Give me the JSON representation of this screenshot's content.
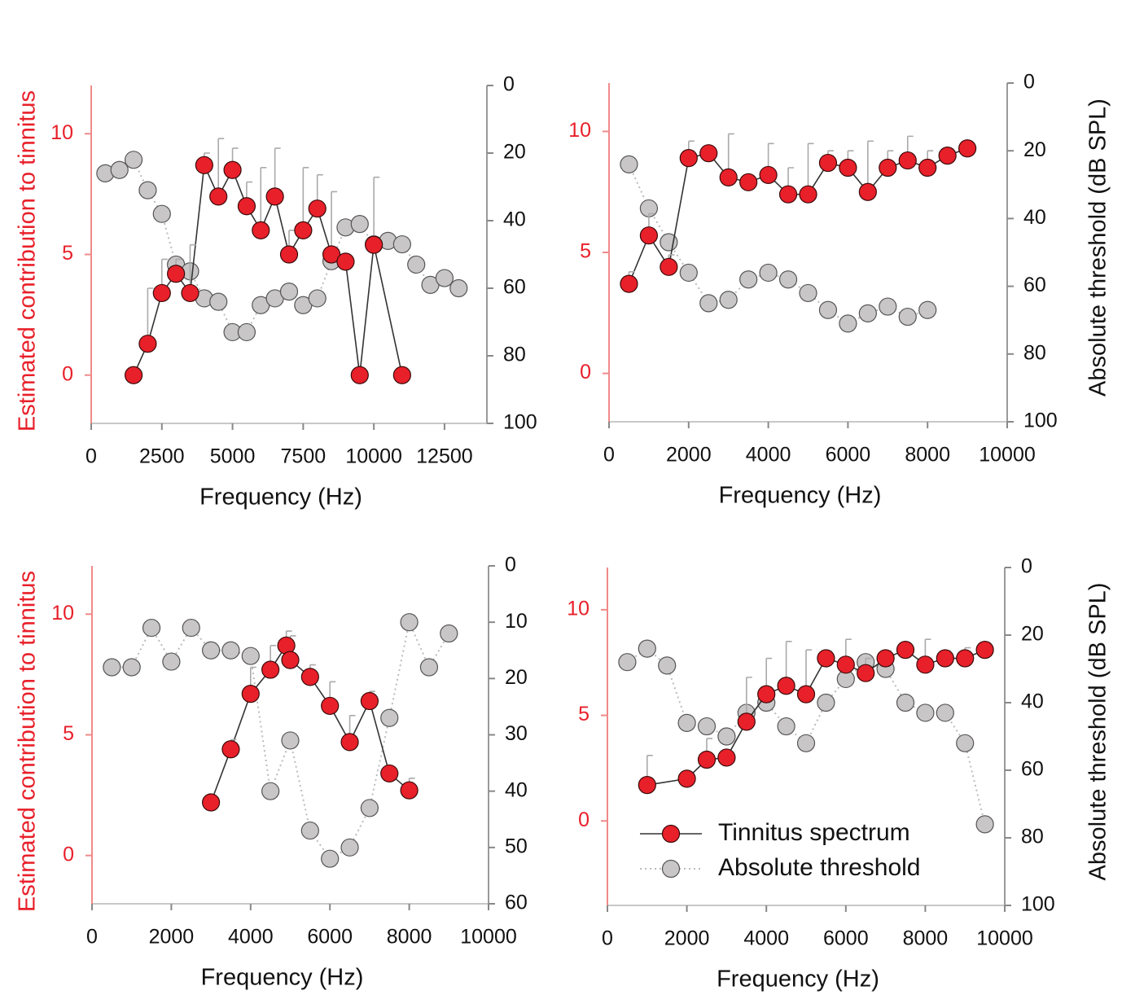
{
  "chart_data": [
    {
      "type": "line",
      "xlabel": "Frequency (Hz)",
      "ylabel": "Estimated contribution to tinnitus",
      "xlim": [
        0,
        14000
      ],
      "xticks": [
        0,
        2500,
        5000,
        7500,
        10000,
        12500
      ],
      "ylim": [
        -2,
        12
      ],
      "yticks": [
        0,
        5,
        10
      ],
      "y2lim": [
        100,
        0
      ],
      "y2ticks": [
        0,
        20,
        40,
        60,
        80,
        100
      ],
      "series": [
        {
          "color": "#e8202a",
          "style": "solid",
          "x": [
            1500,
            2000,
            2500,
            3000,
            3500,
            4000,
            4500,
            5000,
            5500,
            6000,
            6500,
            7000,
            7500,
            8000,
            8500,
            9000,
            9500,
            10000,
            11000
          ],
          "values": [
            0,
            1.3,
            3.4,
            4.2,
            3.4,
            8.7,
            7.4,
            8.5,
            7.0,
            6.0,
            7.4,
            5.0,
            6.0,
            6.9,
            5.0,
            4.7,
            0,
            5.4,
            0
          ],
          "errors": [
            null,
            2.3,
            1.4,
            0.6,
            2.0,
            0.5,
            2.4,
            0.9,
            1.0,
            2.6,
            2.0,
            1.0,
            2.6,
            1.4,
            2.6,
            null,
            null,
            2.8,
            null
          ]
        },
        {
          "color": "#c8c6c6",
          "style": "dotted",
          "axis": "y2",
          "x": [
            500,
            1000,
            1500,
            2000,
            2500,
            3000,
            3500,
            4000,
            4500,
            5000,
            5500,
            6000,
            6500,
            7000,
            7500,
            8000,
            8500,
            9000,
            9500,
            10000,
            10500,
            11000,
            11500,
            12000,
            12500,
            13000
          ],
          "values": [
            26,
            25,
            22,
            31,
            38,
            53,
            55,
            63,
            64,
            73,
            73,
            65,
            63,
            61,
            65,
            63,
            52,
            42,
            41,
            47,
            46,
            47,
            53,
            59,
            57,
            60
          ]
        }
      ]
    },
    {
      "type": "line",
      "xlabel": "Frequency (Hz)",
      "y2label": "Absolute threshold (dB SPL)",
      "xlim": [
        0,
        10000
      ],
      "xticks": [
        0,
        2000,
        4000,
        6000,
        8000,
        10000
      ],
      "ylim": [
        -2,
        12
      ],
      "yticks": [
        0,
        5,
        10
      ],
      "y2lim": [
        100,
        0
      ],
      "y2ticks": [
        0,
        20,
        40,
        60,
        80,
        100
      ],
      "series": [
        {
          "color": "#e8202a",
          "style": "solid",
          "x": [
            500,
            1000,
            1500,
            2000,
            2500,
            3000,
            3500,
            4000,
            4500,
            5000,
            5500,
            6000,
            6500,
            7000,
            7500,
            8000,
            8500,
            9000
          ],
          "values": [
            3.7,
            5.7,
            4.4,
            8.9,
            9.1,
            8.1,
            7.9,
            8.2,
            7.4,
            7.4,
            8.7,
            8.5,
            7.5,
            8.5,
            8.8,
            8.5,
            9.0,
            9.3
          ],
          "errors": [
            0.5,
            0.9,
            0.5,
            0.7,
            null,
            1.8,
            null,
            1.3,
            1.1,
            2.1,
            0.5,
            0.7,
            2.1,
            0.7,
            1.0,
            0.7,
            null,
            null
          ]
        },
        {
          "color": "#c8c6c6",
          "style": "dotted",
          "axis": "y2",
          "x": [
            500,
            1000,
            1500,
            2000,
            2500,
            3000,
            3500,
            4000,
            4500,
            5000,
            5500,
            6000,
            6500,
            7000,
            7500,
            8000
          ],
          "values": [
            24,
            37,
            47,
            56,
            65,
            64,
            58,
            56,
            58,
            62,
            67,
            71,
            68,
            66,
            69,
            67
          ]
        }
      ]
    },
    {
      "type": "line",
      "xlabel": "Frequency (Hz)",
      "ylabel": "Estimated contribution to tinnitus",
      "xlim": [
        0,
        10000
      ],
      "xticks": [
        0,
        2000,
        4000,
        6000,
        8000,
        10000
      ],
      "ylim": [
        -2,
        12
      ],
      "yticks": [
        0,
        5,
        10
      ],
      "y2lim": [
        60,
        0
      ],
      "y2ticks": [
        0,
        10,
        20,
        30,
        40,
        50,
        60
      ],
      "series": [
        {
          "color": "#e8202a",
          "style": "solid",
          "x": [
            3000,
            3500,
            4000,
            4500,
            4900,
            5000,
            5500,
            6000,
            6500,
            7000,
            7500,
            8000
          ],
          "values": [
            2.2,
            4.4,
            6.7,
            7.7,
            8.7,
            8.1,
            7.4,
            6.2,
            4.7,
            6.4,
            3.4,
            2.7
          ],
          "errors": [
            null,
            0.4,
            1.1,
            1.0,
            0.6,
            1.0,
            0.5,
            1.0,
            1.1,
            0.4,
            null,
            0.5
          ]
        },
        {
          "color": "#c8c6c6",
          "style": "dotted",
          "axis": "y2",
          "x": [
            500,
            1000,
            1500,
            2000,
            2500,
            3000,
            3500,
            4000,
            4500,
            5000,
            5500,
            6000,
            6500,
            7000,
            7500,
            8000,
            8500,
            9000
          ],
          "values": [
            18,
            18,
            11,
            17,
            11,
            15,
            15,
            16,
            40,
            31,
            47,
            52,
            50,
            43,
            27,
            10,
            18,
            12
          ]
        }
      ]
    },
    {
      "type": "line",
      "xlabel": "Frequency (Hz)",
      "y2label": "Absolute threshold (dB SPL)",
      "legend": "lower left",
      "xlim": [
        0,
        10000
      ],
      "xticks": [
        0,
        2000,
        4000,
        6000,
        8000,
        10000
      ],
      "ylim": [
        -4,
        12
      ],
      "yticks": [
        0,
        5,
        10
      ],
      "y2lim": [
        100,
        0
      ],
      "y2ticks": [
        0,
        20,
        40,
        60,
        80,
        100
      ],
      "series": [
        {
          "name": "Tinnitus spectrum",
          "color": "#e8202a",
          "style": "solid",
          "x": [
            1000,
            2000,
            2500,
            3000,
            3500,
            4000,
            4500,
            5000,
            5500,
            6000,
            6500,
            7000,
            7500,
            8000,
            8500,
            9000,
            9500
          ],
          "values": [
            1.7,
            2.0,
            2.9,
            3.0,
            4.7,
            6.0,
            6.4,
            6.0,
            7.7,
            7.4,
            7.0,
            7.7,
            8.1,
            7.4,
            7.7,
            7.7,
            8.1
          ],
          "errors": [
            1.4,
            null,
            1.0,
            null,
            2.1,
            1.7,
            2.1,
            2.1,
            0.35,
            1.2,
            0.7,
            0.35,
            0.3,
            1.2,
            0.35,
            0.5,
            0.3
          ]
        },
        {
          "name": "Absolute threshold",
          "color": "#c8c6c6",
          "style": "dotted",
          "axis": "y2",
          "x": [
            500,
            1000,
            1500,
            2000,
            2500,
            3000,
            3500,
            4000,
            4500,
            5000,
            5500,
            6000,
            6500,
            7000,
            7500,
            8000,
            8500,
            9000,
            9500
          ],
          "values": [
            28,
            24,
            29,
            46,
            47,
            50,
            43,
            40,
            47,
            52,
            40,
            33,
            28,
            30,
            40,
            43,
            43,
            52,
            76
          ]
        }
      ]
    }
  ]
}
